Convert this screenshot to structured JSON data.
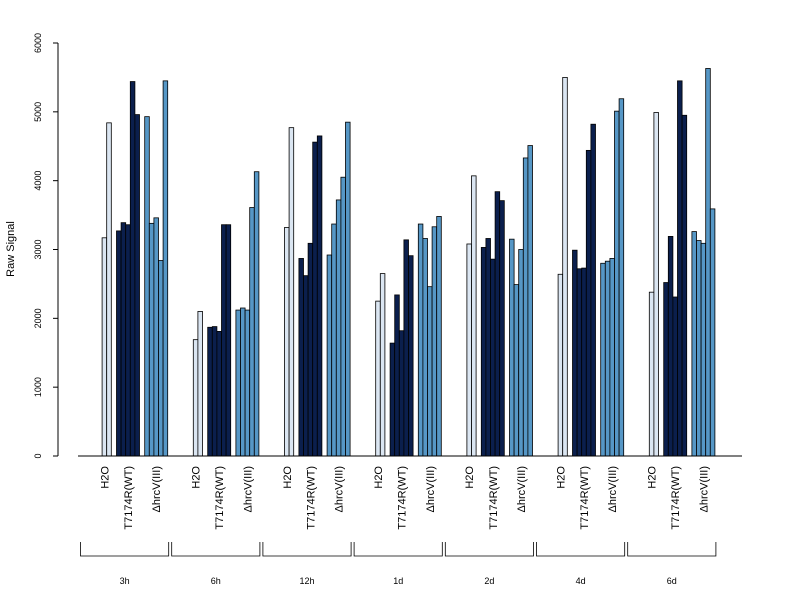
{
  "chart_data": {
    "type": "bar",
    "ylabel": "Raw Signal",
    "ylim": [
      0,
      6000
    ],
    "yticks": [
      0,
      1000,
      2000,
      3000,
      4000,
      5000,
      6000
    ],
    "colors": {
      "H2O": "#dbe6f2",
      "T7174R(WT)": "#0b1f4d",
      "ΔhrcV(III)": "#5697c6"
    },
    "treatments": [
      "H2O",
      "T7174R(WT)",
      "ΔhrcV(III)"
    ],
    "timepoints": [
      {
        "label": "3h",
        "bars": {
          "H2O": [
            0,
            3170,
            4840
          ],
          "T7174R(WT)": [
            3270,
            3390,
            3360,
            5440,
            4960
          ],
          "ΔhrcV(III)": [
            4930,
            3380,
            3460,
            2840,
            5450
          ]
        }
      },
      {
        "label": "6h",
        "bars": {
          "H2O": [
            0,
            1690,
            2100
          ],
          "T7174R(WT)": [
            1870,
            1880,
            1810,
            3360,
            3360
          ],
          "ΔhrcV(III)": [
            2120,
            2150,
            2120,
            3610,
            4130
          ]
        }
      },
      {
        "label": "12h",
        "bars": {
          "H2O": [
            0,
            3320,
            4770
          ],
          "T7174R(WT)": [
            2870,
            2620,
            3090,
            4560,
            4650
          ],
          "ΔhrcV(III)": [
            2920,
            3370,
            3720,
            4050,
            4850
          ]
        }
      },
      {
        "label": "1d",
        "bars": {
          "H2O": [
            0,
            2250,
            2650
          ],
          "T7174R(WT)": [
            1640,
            2340,
            1820,
            3140,
            2910
          ],
          "ΔhrcV(III)": [
            3370,
            3160,
            2460,
            3330,
            3480
          ]
        }
      },
      {
        "label": "2d",
        "bars": {
          "H2O": [
            0,
            3080,
            4070
          ],
          "T7174R(WT)": [
            3030,
            3160,
            2860,
            3840,
            3710
          ],
          "ΔhrcV(III)": [
            3150,
            2490,
            3000,
            4330,
            4510
          ]
        }
      },
      {
        "label": "4d",
        "bars": {
          "H2O": [
            0,
            2640,
            5500
          ],
          "T7174R(WT)": [
            2990,
            2720,
            2730,
            4440,
            4820
          ],
          "ΔhrcV(III)": [
            2800,
            2830,
            2870,
            5010,
            5190
          ]
        }
      },
      {
        "label": "6d",
        "bars": {
          "H2O": [
            0,
            2380,
            4990
          ],
          "T7174R(WT)": [
            2520,
            3190,
            2310,
            5450,
            4950
          ],
          "ΔhrcV(III)": [
            3260,
            3130,
            3090,
            5630,
            3590
          ]
        }
      }
    ]
  }
}
